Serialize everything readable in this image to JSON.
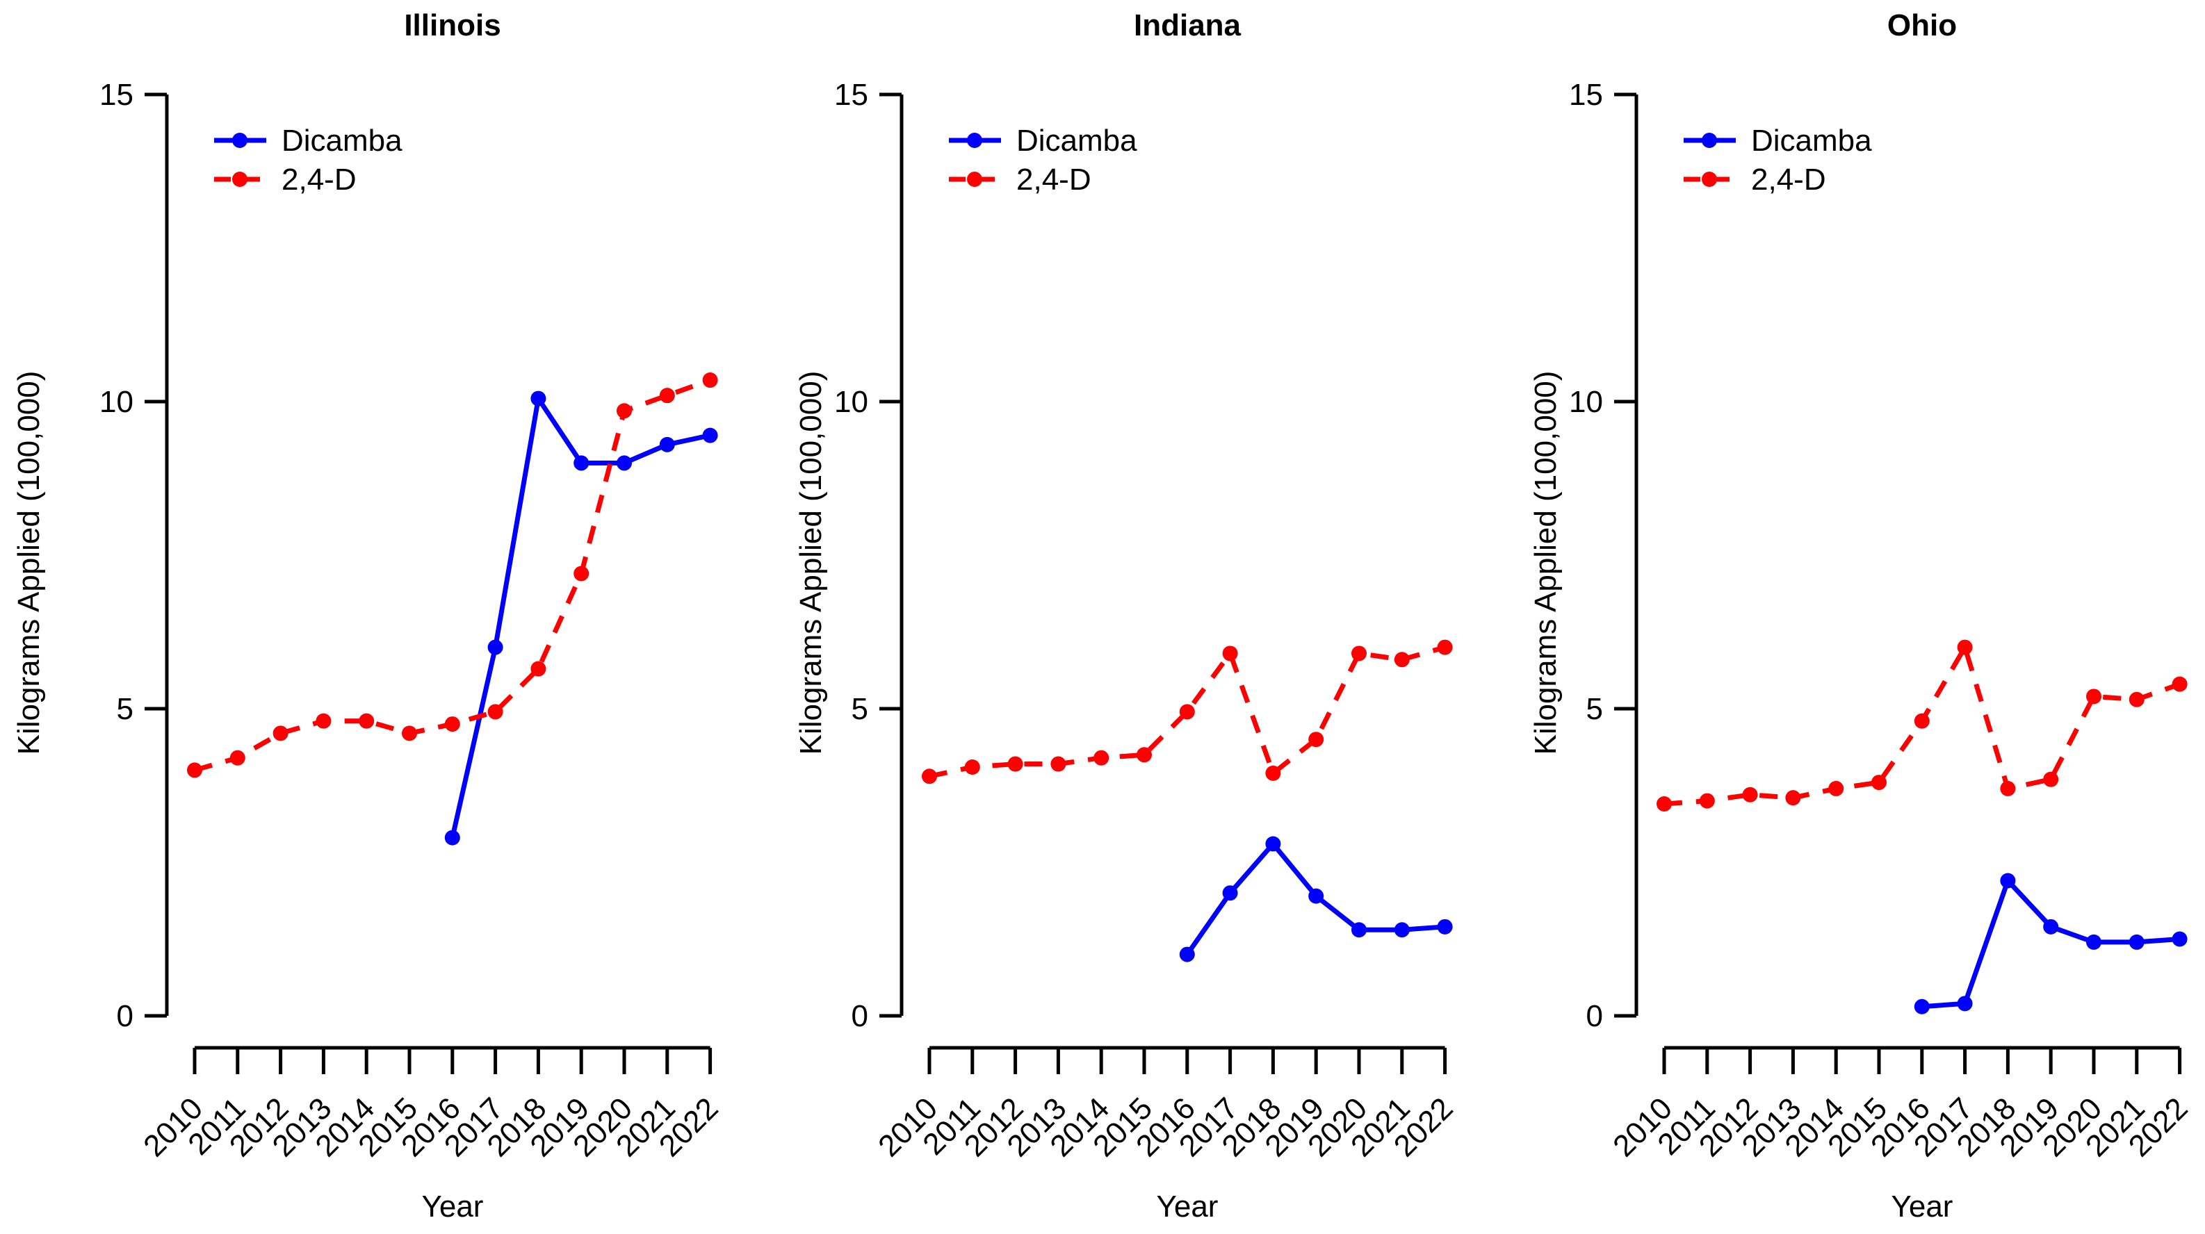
{
  "figure": {
    "ylabel": "Kilograms Applied (100,000)",
    "xlabel": "Year",
    "legend": {
      "dicamba": "Dicamba",
      "d24": "2,4-D"
    }
  },
  "chart_data": {
    "type": "line",
    "x": [
      2010,
      2011,
      2012,
      2013,
      2014,
      2015,
      2016,
      2017,
      2018,
      2019,
      2020,
      2021,
      2022
    ],
    "xlabel": "Year",
    "ylabel": "Kilograms Applied (100,000)",
    "ylim": [
      0,
      15
    ],
    "yticks": [
      0,
      5,
      10,
      15
    ],
    "grid": false,
    "legend_position": "top-left",
    "legend_entries": [
      "Dicamba",
      "2,4-D"
    ],
    "colors": {
      "dicamba": "#0000FF",
      "d24": "#FF0000",
      "axis": "#000000",
      "background": "#FFFFFF"
    },
    "panels": [
      {
        "title": "Illinois",
        "series": [
          {
            "name": "Dicamba",
            "color": "#0000FF",
            "line": "solid",
            "marker": "circle",
            "x": [
              2016,
              2017,
              2018,
              2019,
              2020,
              2021,
              2022
            ],
            "values": [
              2.9,
              6.0,
              10.05,
              9.0,
              9.0,
              9.3,
              9.45
            ]
          },
          {
            "name": "2,4-D",
            "color": "#FF0000",
            "line": "dashed",
            "marker": "circle",
            "x": [
              2010,
              2011,
              2012,
              2013,
              2014,
              2015,
              2016,
              2017,
              2018,
              2019,
              2020,
              2021,
              2022
            ],
            "values": [
              4.0,
              4.2,
              4.6,
              4.8,
              4.8,
              4.6,
              4.75,
              4.95,
              5.65,
              7.2,
              9.85,
              10.1,
              10.35
            ]
          }
        ]
      },
      {
        "title": "Indiana",
        "series": [
          {
            "name": "Dicamba",
            "color": "#0000FF",
            "line": "solid",
            "marker": "circle",
            "x": [
              2016,
              2017,
              2018,
              2019,
              2020,
              2021,
              2022
            ],
            "values": [
              1.0,
              2.0,
              2.8,
              1.95,
              1.4,
              1.4,
              1.45
            ]
          },
          {
            "name": "2,4-D",
            "color": "#FF0000",
            "line": "dashed",
            "marker": "circle",
            "x": [
              2010,
              2011,
              2012,
              2013,
              2014,
              2015,
              2016,
              2017,
              2018,
              2019,
              2020,
              2021,
              2022
            ],
            "values": [
              3.9,
              4.05,
              4.1,
              4.1,
              4.2,
              4.25,
              4.95,
              5.9,
              3.95,
              4.5,
              5.9,
              5.8,
              6.0
            ]
          }
        ]
      },
      {
        "title": "Ohio",
        "series": [
          {
            "name": "Dicamba",
            "color": "#0000FF",
            "line": "solid",
            "marker": "circle",
            "x": [
              2016,
              2017,
              2018,
              2019,
              2020,
              2021,
              2022
            ],
            "values": [
              0.15,
              0.2,
              2.2,
              1.45,
              1.2,
              1.2,
              1.25
            ]
          },
          {
            "name": "2,4-D",
            "color": "#FF0000",
            "line": "dashed",
            "marker": "circle",
            "x": [
              2010,
              2011,
              2012,
              2013,
              2014,
              2015,
              2016,
              2017,
              2018,
              2019,
              2020,
              2021,
              2022
            ],
            "values": [
              3.45,
              3.5,
              3.6,
              3.55,
              3.7,
              3.8,
              4.8,
              6.0,
              3.7,
              3.85,
              5.2,
              5.15,
              5.4
            ]
          }
        ]
      }
    ]
  }
}
